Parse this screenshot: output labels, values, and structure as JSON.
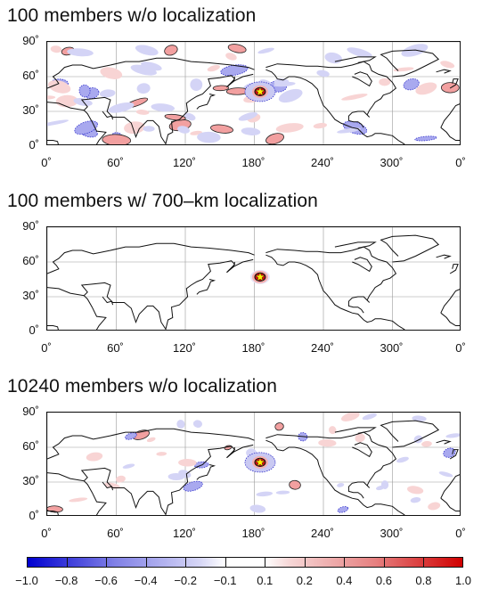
{
  "panels": [
    {
      "title": "100 members w/o localization",
      "pattern": "noisy"
    },
    {
      "title": "100 members w/ 700–km localization",
      "pattern": "localized"
    },
    {
      "title": "10240 members w/o localization",
      "pattern": "large_ensemble"
    }
  ],
  "lat_ticks": [
    "90˚",
    "60˚",
    "30˚",
    "0˚"
  ],
  "lon_ticks": [
    "0˚",
    "60˚",
    "120˚",
    "180˚",
    "240˚",
    "300˚",
    "0˚"
  ],
  "colorbar": {
    "ticks": [
      "−1.0",
      "−0.8",
      "−0.6",
      "−0.4",
      "−0.2",
      "−0.1",
      "0.1",
      "0.2",
      "0.4",
      "0.6",
      "0.8",
      "1.0"
    ],
    "colors": {
      "negative": "#0000d0",
      "zero": "#ffffff",
      "positive": "#d00000"
    }
  },
  "marker": {
    "icon": "star-icon",
    "lon": 185,
    "lat": 47,
    "color": "#ffee00"
  }
}
